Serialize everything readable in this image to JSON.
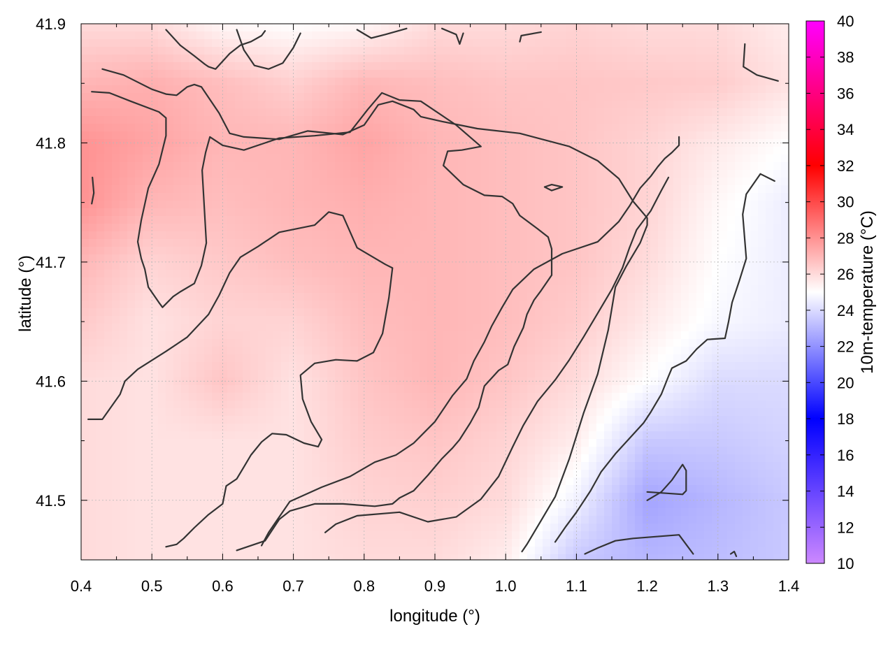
{
  "chart_data": {
    "type": "heatmap",
    "title": "",
    "xlabel": "longitude (°)",
    "ylabel": "latitude (°)",
    "colorbar_label": "10m-temperature (°C)",
    "xlim": [
      0.4,
      1.4
    ],
    "ylim": [
      41.45,
      41.9
    ],
    "x_ticks": [
      "0.4",
      "0.5",
      "0.6",
      "0.7",
      "0.8",
      "0.9",
      "1.0",
      "1.1",
      "1.2",
      "1.3",
      "1.4"
    ],
    "y_ticks": [
      "41.5",
      "41.6",
      "41.7",
      "41.8",
      "41.9"
    ],
    "colorbar_range": [
      10,
      40
    ],
    "colorbar_ticks": [
      "10",
      "12",
      "14",
      "16",
      "18",
      "20",
      "22",
      "24",
      "26",
      "28",
      "30",
      "32",
      "34",
      "36",
      "38",
      "40"
    ],
    "colormap": [
      {
        "value": 10,
        "color": "#cc88ff"
      },
      {
        "value": 18,
        "color": "#0000ff"
      },
      {
        "value": 25,
        "color": "#ffffff"
      },
      {
        "value": 32,
        "color": "#ff0000"
      },
      {
        "value": 40,
        "color": "#ff00ff"
      }
    ],
    "grid": true,
    "contour_color": "#333333",
    "temperature_field": {
      "x": [
        0.4,
        0.5,
        0.6,
        0.7,
        0.8,
        0.9,
        1.0,
        1.1,
        1.2,
        1.3,
        1.4
      ],
      "y": [
        41.9,
        41.85,
        41.8,
        41.75,
        41.7,
        41.65,
        41.6,
        41.55,
        41.5,
        41.45
      ],
      "values": [
        [
          26.0,
          26.0,
          25.2,
          25.0,
          25.2,
          26.0,
          26.0,
          26.2,
          26.0,
          26.0,
          25.5
        ],
        [
          27.0,
          27.2,
          26.8,
          26.3,
          27.0,
          26.8,
          26.6,
          26.6,
          26.5,
          26.4,
          25.8
        ],
        [
          28.0,
          27.5,
          27.0,
          27.0,
          27.5,
          27.0,
          26.8,
          26.6,
          26.2,
          25.6,
          25.0
        ],
        [
          28.0,
          27.0,
          26.8,
          27.0,
          27.2,
          27.0,
          26.8,
          26.6,
          26.2,
          25.2,
          24.5
        ],
        [
          27.0,
          26.2,
          26.5,
          26.8,
          27.0,
          27.0,
          26.8,
          26.6,
          26.0,
          25.0,
          24.5
        ],
        [
          26.5,
          25.8,
          26.2,
          26.2,
          26.8,
          27.0,
          26.8,
          26.4,
          25.6,
          24.8,
          24.5
        ],
        [
          26.0,
          25.8,
          26.6,
          25.8,
          26.6,
          27.0,
          26.6,
          26.0,
          25.0,
          24.0,
          24.0
        ],
        [
          26.0,
          25.8,
          25.8,
          25.8,
          26.4,
          26.6,
          26.2,
          25.5,
          23.5,
          23.5,
          23.8
        ],
        [
          26.0,
          25.8,
          25.8,
          25.8,
          26.2,
          26.3,
          26.0,
          24.6,
          22.5,
          23.0,
          23.5
        ],
        [
          26.0,
          25.8,
          25.8,
          25.8,
          26.0,
          26.0,
          25.5,
          23.5,
          23.0,
          23.2,
          23.5
        ]
      ]
    },
    "contours": [
      [
        [
          0.43,
          41.862
        ],
        [
          0.46,
          41.857
        ],
        [
          0.5,
          41.845
        ],
        [
          0.52,
          41.841
        ],
        [
          0.535,
          41.84
        ],
        [
          0.55,
          41.847
        ],
        [
          0.56,
          41.849
        ],
        [
          0.57,
          41.847
        ],
        [
          0.595,
          41.825
        ],
        [
          0.61,
          41.808
        ],
        [
          0.63,
          41.805
        ],
        [
          0.68,
          41.803
        ],
        [
          0.72,
          41.81
        ],
        [
          0.77,
          41.807
        ],
        [
          0.8,
          41.815
        ],
        [
          0.82,
          41.832
        ],
        [
          0.84,
          41.835
        ],
        [
          0.87,
          41.828
        ],
        [
          0.88,
          41.822
        ],
        [
          0.91,
          41.818
        ],
        [
          0.96,
          41.812
        ],
        [
          1.02,
          41.808
        ],
        [
          1.09,
          41.797
        ],
        [
          1.13,
          41.785
        ],
        [
          1.16,
          41.77
        ],
        [
          1.18,
          41.751
        ],
        [
          1.2,
          41.737
        ],
        [
          1.2,
          41.731
        ],
        [
          1.19,
          41.716
        ],
        [
          1.17,
          41.696
        ],
        [
          1.155,
          41.679
        ],
        [
          1.145,
          41.643
        ],
        [
          1.13,
          41.606
        ],
        [
          1.11,
          41.573
        ],
        [
          1.09,
          41.535
        ],
        [
          1.07,
          41.503
        ],
        [
          1.05,
          41.483
        ],
        [
          1.03,
          41.463
        ],
        [
          1.023,
          41.457
        ]
      ],
      [
        [
          0.415,
          41.843
        ],
        [
          0.44,
          41.842
        ],
        [
          0.47,
          41.835
        ],
        [
          0.51,
          41.826
        ],
        [
          0.52,
          41.821
        ],
        [
          0.52,
          41.806
        ],
        [
          0.51,
          41.782
        ],
        [
          0.495,
          41.762
        ],
        [
          0.485,
          41.735
        ],
        [
          0.48,
          41.717
        ],
        [
          0.485,
          41.703
        ],
        [
          0.49,
          41.694
        ],
        [
          0.495,
          41.679
        ],
        [
          0.51,
          41.666
        ],
        [
          0.515,
          41.662
        ],
        [
          0.53,
          41.671
        ],
        [
          0.54,
          41.675
        ],
        [
          0.56,
          41.682
        ],
        [
          0.57,
          41.697
        ],
        [
          0.577,
          41.716
        ],
        [
          0.571,
          41.777
        ],
        [
          0.576,
          41.792
        ],
        [
          0.582,
          41.805
        ],
        [
          0.6,
          41.798
        ],
        [
          0.63,
          41.794
        ],
        [
          0.68,
          41.804
        ],
        [
          0.73,
          41.806
        ],
        [
          0.78,
          41.809
        ],
        [
          0.805,
          41.828
        ],
        [
          0.825,
          41.842
        ],
        [
          0.85,
          41.836
        ],
        [
          0.88,
          41.835
        ],
        [
          0.93,
          41.815
        ],
        [
          0.965,
          41.797
        ],
        [
          0.938,
          41.794
        ],
        [
          0.918,
          41.793
        ],
        [
          0.912,
          41.781
        ],
        [
          0.94,
          41.765
        ],
        [
          0.97,
          41.756
        ],
        [
          0.995,
          41.755
        ],
        [
          1.01,
          41.749
        ],
        [
          1.02,
          41.739
        ],
        [
          1.045,
          41.728
        ],
        [
          1.06,
          41.721
        ],
        [
          1.065,
          41.711
        ],
        [
          1.065,
          41.689
        ],
        [
          1.05,
          41.676
        ],
        [
          1.04,
          41.668
        ],
        [
          1.03,
          41.656
        ],
        [
          1.025,
          41.645
        ],
        [
          1.012,
          41.629
        ],
        [
          1.003,
          41.614
        ],
        [
          0.99,
          41.609
        ],
        [
          0.97,
          41.596
        ],
        [
          0.965,
          41.585
        ],
        [
          0.962,
          41.578
        ],
        [
          0.95,
          41.565
        ],
        [
          0.935,
          41.551
        ],
        [
          0.925,
          41.544
        ],
        [
          0.91,
          41.535
        ],
        [
          0.89,
          41.521
        ],
        [
          0.87,
          41.508
        ],
        [
          0.85,
          41.502
        ],
        [
          0.84,
          41.497
        ],
        [
          0.815,
          41.495
        ],
        [
          0.77,
          41.497
        ],
        [
          0.73,
          41.497
        ],
        [
          0.695,
          41.491
        ],
        [
          0.68,
          41.484
        ],
        [
          0.66,
          41.466
        ],
        [
          0.62,
          41.458
        ]
      ],
      [
        [
          0.41,
          41.568
        ],
        [
          0.43,
          41.568
        ],
        [
          0.455,
          41.589
        ],
        [
          0.462,
          41.6
        ],
        [
          0.48,
          41.61
        ],
        [
          0.52,
          41.625
        ],
        [
          0.55,
          41.637
        ],
        [
          0.58,
          41.656
        ],
        [
          0.595,
          41.672
        ],
        [
          0.61,
          41.691
        ],
        [
          0.625,
          41.704
        ],
        [
          0.65,
          41.713
        ],
        [
          0.68,
          41.725
        ],
        [
          0.73,
          41.731
        ],
        [
          0.75,
          41.742
        ],
        [
          0.77,
          41.739
        ],
        [
          0.79,
          41.712
        ],
        [
          0.83,
          41.698
        ],
        [
          0.84,
          41.695
        ],
        [
          0.835,
          41.67
        ],
        [
          0.826,
          41.64
        ],
        [
          0.813,
          41.624
        ],
        [
          0.79,
          41.617
        ],
        [
          0.76,
          41.618
        ],
        [
          0.73,
          41.615
        ],
        [
          0.71,
          41.605
        ],
        [
          0.713,
          41.585
        ],
        [
          0.725,
          41.566
        ],
        [
          0.74,
          41.551
        ],
        [
          0.735,
          41.545
        ],
        [
          0.715,
          41.548
        ],
        [
          0.69,
          41.555
        ],
        [
          0.67,
          41.556
        ],
        [
          0.655,
          41.549
        ],
        [
          0.64,
          41.538
        ],
        [
          0.63,
          41.528
        ],
        [
          0.62,
          41.518
        ],
        [
          0.605,
          41.512
        ],
        [
          0.6,
          41.497
        ],
        [
          0.58,
          41.488
        ],
        [
          0.56,
          41.477
        ],
        [
          0.545,
          41.468
        ],
        [
          0.535,
          41.463
        ],
        [
          0.52,
          41.461
        ]
      ],
      [
        [
          0.655,
          41.462
        ],
        [
          0.665,
          41.473
        ],
        [
          0.695,
          41.499
        ],
        [
          0.74,
          41.511
        ],
        [
          0.78,
          41.52
        ],
        [
          0.815,
          41.532
        ],
        [
          0.845,
          41.538
        ],
        [
          0.87,
          41.548
        ],
        [
          0.9,
          41.566
        ],
        [
          0.925,
          41.588
        ],
        [
          0.945,
          41.602
        ],
        [
          0.955,
          41.617
        ],
        [
          0.97,
          41.633
        ],
        [
          0.98,
          41.646
        ],
        [
          0.995,
          41.662
        ],
        [
          1.01,
          41.677
        ],
        [
          1.04,
          41.694
        ],
        [
          1.08,
          41.707
        ],
        [
          1.13,
          41.717
        ],
        [
          1.16,
          41.734
        ],
        [
          1.175,
          41.747
        ],
        [
          1.19,
          41.762
        ],
        [
          1.205,
          41.772
        ],
        [
          1.215,
          41.78
        ],
        [
          1.225,
          41.787
        ],
        [
          1.235,
          41.792
        ],
        [
          1.245,
          41.798
        ],
        [
          1.245,
          41.805
        ]
      ],
      [
        [
          0.745,
          41.473
        ],
        [
          0.76,
          41.48
        ],
        [
          0.79,
          41.487
        ],
        [
          0.85,
          41.49
        ],
        [
          0.89,
          41.482
        ],
        [
          0.93,
          41.486
        ],
        [
          0.965,
          41.501
        ],
        [
          0.99,
          41.52
        ],
        [
          1.01,
          41.545
        ],
        [
          1.025,
          41.563
        ],
        [
          1.045,
          41.583
        ],
        [
          1.07,
          41.601
        ],
        [
          1.09,
          41.618
        ],
        [
          1.11,
          41.637
        ],
        [
          1.13,
          41.657
        ],
        [
          1.15,
          41.677
        ],
        [
          1.165,
          41.695
        ],
        [
          1.175,
          41.712
        ],
        [
          1.185,
          41.727
        ],
        [
          1.205,
          41.743
        ],
        [
          1.22,
          41.76
        ],
        [
          1.23,
          41.771
        ]
      ],
      [
        [
          1.112,
          41.455
        ],
        [
          1.13,
          41.46
        ],
        [
          1.155,
          41.466
        ],
        [
          1.18,
          41.468
        ],
        [
          1.245,
          41.471
        ],
        [
          1.265,
          41.455
        ]
      ],
      [
        [
          1.2,
          41.5
        ],
        [
          1.22,
          41.507
        ],
        [
          1.235,
          41.517
        ],
        [
          1.25,
          41.53
        ],
        [
          1.255,
          41.525
        ],
        [
          1.255,
          41.508
        ],
        [
          1.25,
          41.505
        ],
        [
          1.2,
          41.507
        ]
      ],
      [
        [
          1.318,
          41.455
        ],
        [
          1.323,
          41.457
        ],
        [
          1.326,
          41.453
        ]
      ],
      [
        [
          0.52,
          41.895
        ],
        [
          0.54,
          41.882
        ],
        [
          0.56,
          41.873
        ],
        [
          0.575,
          41.866
        ],
        [
          0.58,
          41.864
        ],
        [
          0.59,
          41.862
        ],
        [
          0.61,
          41.875
        ],
        [
          0.625,
          41.882
        ],
        [
          0.64,
          41.885
        ],
        [
          0.655,
          41.89
        ],
        [
          0.66,
          41.894
        ]
      ],
      [
        [
          0.62,
          41.895
        ],
        [
          0.63,
          41.878
        ],
        [
          0.645,
          41.865
        ],
        [
          0.665,
          41.862
        ],
        [
          0.685,
          41.867
        ],
        [
          0.7,
          41.88
        ],
        [
          0.71,
          41.892
        ]
      ],
      [
        [
          0.79,
          41.895
        ],
        [
          0.81,
          41.888
        ],
        [
          0.83,
          41.891
        ],
        [
          0.86,
          41.896
        ]
      ],
      [
        [
          0.91,
          41.896
        ],
        [
          0.93,
          41.891
        ],
        [
          0.935,
          41.883
        ],
        [
          0.94,
          41.892
        ]
      ],
      [
        [
          1.02,
          41.885
        ],
        [
          1.022,
          41.89
        ],
        [
          1.05,
          41.893
        ]
      ],
      [
        [
          1.338,
          41.883
        ],
        [
          1.336,
          41.864
        ],
        [
          1.355,
          41.857
        ],
        [
          1.385,
          41.852
        ]
      ],
      [
        [
          0.416,
          41.771
        ],
        [
          0.418,
          41.758
        ],
        [
          0.415,
          41.749
        ]
      ],
      [
        [
          1.055,
          41.763
        ],
        [
          1.065,
          41.765
        ],
        [
          1.08,
          41.763
        ],
        [
          1.065,
          41.76
        ],
        [
          1.055,
          41.763
        ]
      ],
      [
        [
          1.38,
          41.768
        ],
        [
          1.36,
          41.774
        ],
        [
          1.34,
          41.757
        ],
        [
          1.335,
          41.74
        ],
        [
          1.34,
          41.703
        ],
        [
          1.33,
          41.684
        ],
        [
          1.32,
          41.666
        ],
        [
          1.315,
          41.65
        ],
        [
          1.31,
          41.636
        ],
        [
          1.285,
          41.635
        ],
        [
          1.27,
          41.627
        ],
        [
          1.255,
          41.617
        ],
        [
          1.235,
          41.611
        ],
        [
          1.23,
          41.604
        ],
        [
          1.22,
          41.589
        ],
        [
          1.205,
          41.574
        ],
        [
          1.195,
          41.565
        ],
        [
          1.175,
          41.552
        ],
        [
          1.155,
          41.539
        ],
        [
          1.135,
          41.524
        ],
        [
          1.12,
          41.508
        ],
        [
          1.1,
          41.49
        ],
        [
          1.085,
          41.478
        ],
        [
          1.07,
          41.465
        ]
      ]
    ]
  }
}
